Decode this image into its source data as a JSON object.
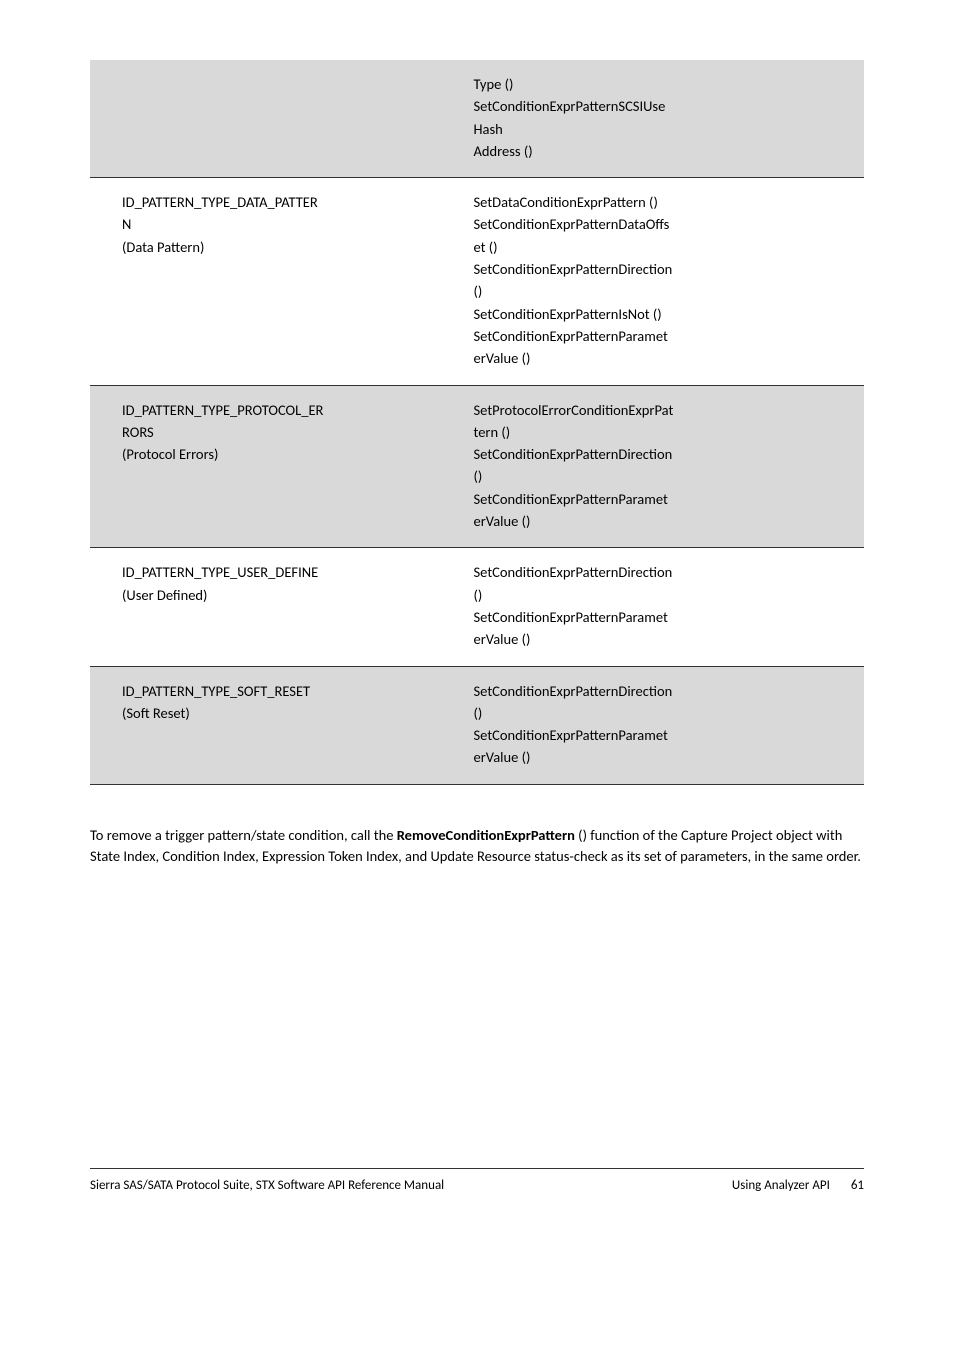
{
  "table": {
    "rows": [
      {
        "shaded": true,
        "divider": false,
        "left": [],
        "right": [
          "Type ()",
          "SetConditionExprPatternSCSIUse",
          "Hash",
          "Address ()"
        ]
      },
      {
        "shaded": false,
        "divider": true,
        "left": [
          "ID_PATTERN_TYPE_DATA_PATTER",
          "N",
          "(Data Pattern)"
        ],
        "right": [
          "SetDataConditionExprPattern ()",
          "SetConditionExprPatternDataOffs",
          "et ()",
          "SetConditionExprPatternDirection",
          "()",
          "SetConditionExprPatternIsNot ()",
          "SetConditionExprPatternParamet",
          "erValue ()"
        ]
      },
      {
        "shaded": true,
        "divider": true,
        "left": [
          "ID_PATTERN_TYPE_PROTOCOL_ER",
          "RORS",
          "(Protocol Errors)"
        ],
        "right": [
          "SetProtocolErrorConditionExprPat",
          "tern ()",
          "SetConditionExprPatternDirection",
          "()",
          "SetConditionExprPatternParamet",
          "erValue ()"
        ]
      },
      {
        "shaded": false,
        "divider": true,
        "left": [
          "ID_PATTERN_TYPE_USER_DEFINE",
          "(User Defined)"
        ],
        "right": [
          "SetConditionExprPatternDirection",
          "()",
          "SetConditionExprPatternParamet",
          "erValue ()"
        ]
      },
      {
        "shaded": true,
        "divider": true,
        "last": true,
        "left": [
          "ID_PATTERN_TYPE_SOFT_RESET",
          "(Soft Reset)"
        ],
        "right": [
          "SetConditionExprPatternDirection",
          "()",
          "SetConditionExprPatternParamet",
          "erValue ()"
        ]
      }
    ]
  },
  "paragraph": {
    "pre": "To remove a trigger pattern/state condition, call the ",
    "bold": "RemoveConditionExprPattern",
    "post": " () function of the Capture Project object with State Index, Condition Index, Expression Token Index, and Update Resource status-check as its set of parameters, in the same order."
  },
  "footer": {
    "left": "Sierra SAS/SATA Protocol Suite, STX Software API Reference Manual",
    "right_label": "Using Analyzer API",
    "page": "61"
  },
  "colors": {
    "shaded_bg": "#d9d9d9",
    "border": "#333333",
    "text": "#000000",
    "background": "#ffffff"
  }
}
